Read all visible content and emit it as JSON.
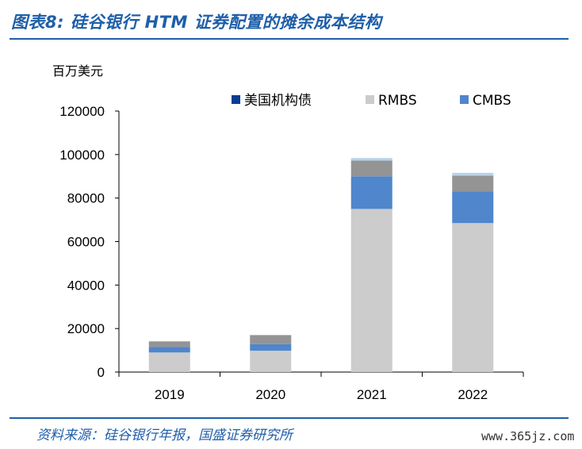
{
  "header": {
    "title": "图表8:  硅谷银行 HTM 证券配置的摊余成本结构"
  },
  "footer": {
    "source": "资料来源：硅谷银行年报，国盛证券研究所",
    "watermark": "www.365jz.com"
  },
  "colors": {
    "brand": "#1f5fa9",
    "treasury": "#0a3d91",
    "rmbs": "#cccccc",
    "cmbs": "#4f86cc",
    "other": "#949494",
    "top": "#b8d3ea"
  },
  "chart_data": {
    "type": "bar",
    "stacked": true,
    "unit_label": "百万美元",
    "categories": [
      "2019",
      "2020",
      "2021",
      "2022"
    ],
    "series": [
      {
        "name": "RMBS",
        "color": "#cccccc",
        "values": [
          9000,
          9800,
          75000,
          68500
        ]
      },
      {
        "name": "CMBS",
        "color": "#4f86cc",
        "values": [
          2600,
          3000,
          15000,
          14500
        ]
      },
      {
        "color": "#949494",
        "values": [
          2500,
          4200,
          7200,
          7300
        ]
      },
      {
        "color": "#b8d3ea",
        "values": [
          0,
          0,
          1200,
          1300
        ]
      },
      {
        "name": "美国机构债",
        "color": "#0a3d91",
        "values": [
          0,
          0,
          0,
          0
        ]
      }
    ],
    "legend": [
      "美国机构债",
      "RMBS",
      "CMBS"
    ],
    "ylim": [
      0,
      120000
    ],
    "yticks": [
      "0",
      "20000",
      "40000",
      "60000",
      "80000",
      "100000",
      "120000"
    ],
    "grid": false,
    "legend_position": "top-right"
  }
}
